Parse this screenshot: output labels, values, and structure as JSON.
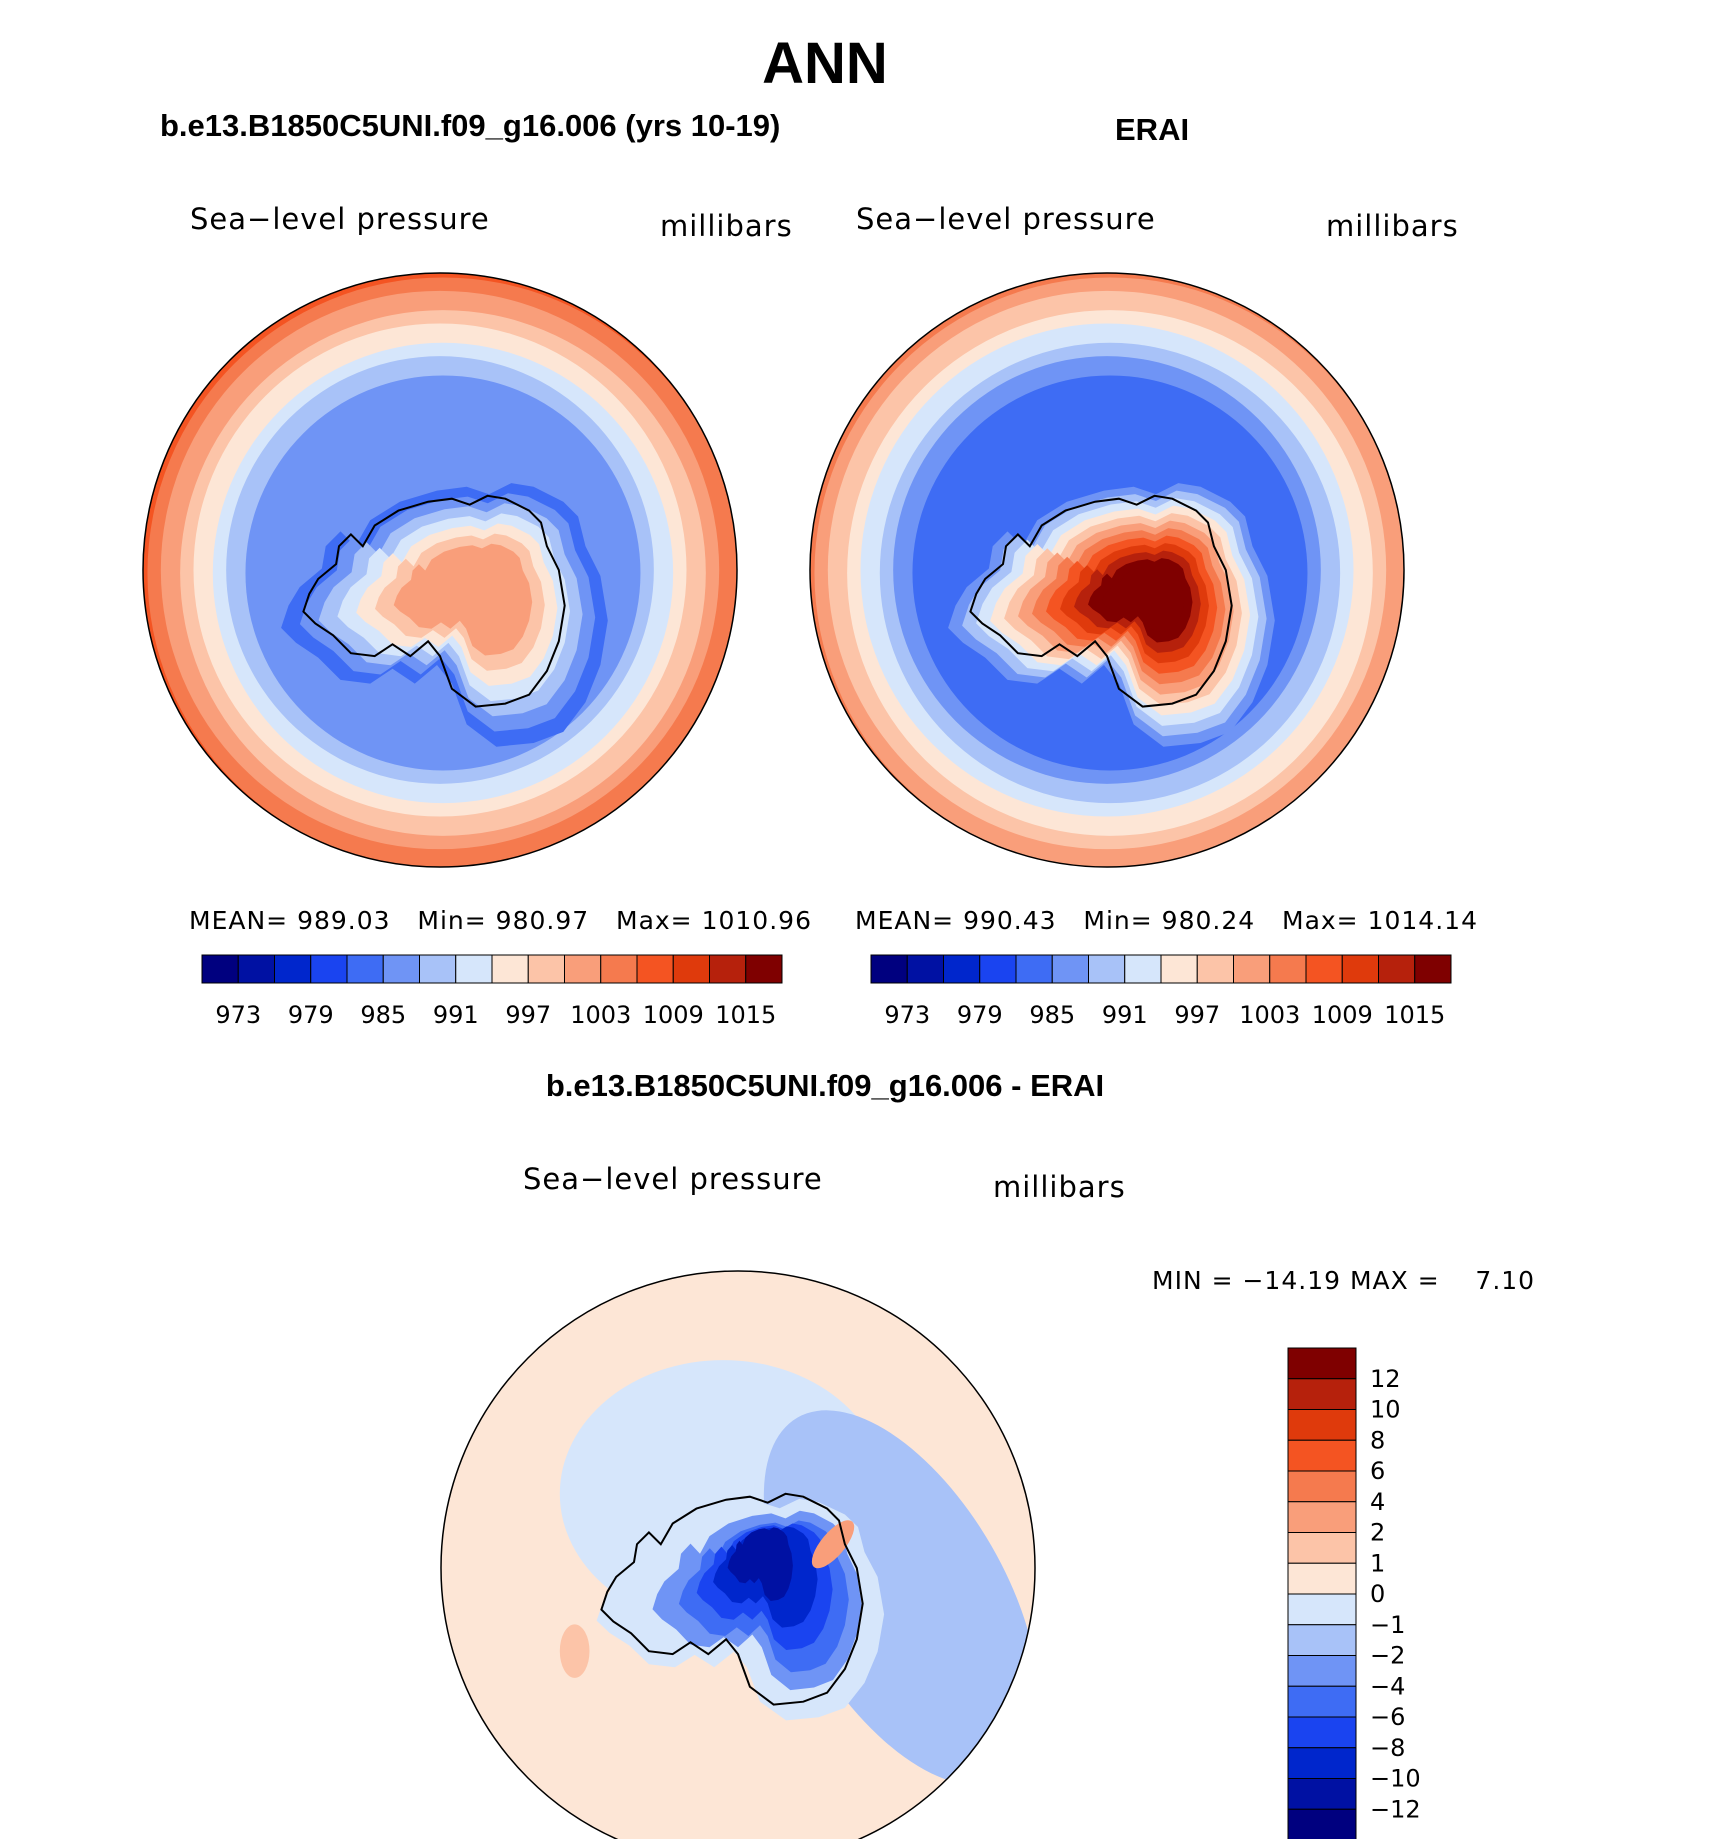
{
  "title": "ANN",
  "panels": [
    {
      "id": "model",
      "title": "b.e13.B1850C5UNI.f09_g16.006 (yrs 10-19)",
      "variable": "Sea−level pressure",
      "units": "millibars",
      "stats": {
        "mean_label": "MEAN=",
        "mean": "989.03",
        "min_label": "Min=",
        "min": "980.97",
        "max_label": "Max=",
        "max": "1010.96"
      }
    },
    {
      "id": "obs",
      "title": "ERAI",
      "variable": "Sea−level pressure",
      "units": "millibars",
      "stats": {
        "mean_label": "MEAN=",
        "mean": "990.43",
        "min_label": "Min=",
        "min": "980.24",
        "max_label": "Max=",
        "max": "1014.14"
      }
    },
    {
      "id": "diff",
      "title": "b.e13.B1850C5UNI.f09_g16.006 - ERAI",
      "variable": "Sea−level pressure",
      "units": "millibars",
      "stats": {
        "minmax": "MIN = −14.19 MAX =    7.10"
      }
    }
  ],
  "chart_data": [
    {
      "type": "heatmap",
      "projection": "south polar stereographic",
      "title": "b.e13.B1850C5UNI.f09_g16.006 (yrs 10-19)",
      "variable": "Sea-level pressure",
      "units": "millibars",
      "mean": 989.03,
      "min": 980.97,
      "max": 1010.96,
      "colorbar_ticks": [
        973,
        979,
        985,
        991,
        997,
        1003,
        1009,
        1015
      ],
      "colorbar_levels": [
        970,
        973,
        976,
        979,
        982,
        985,
        988,
        991,
        994,
        997,
        1000,
        1003,
        1006,
        1009,
        1012,
        1015
      ],
      "field_levels": [
        1003,
        1000,
        997,
        994,
        991,
        988,
        985,
        982,
        981,
        982,
        985,
        988,
        991,
        994,
        997
      ]
    },
    {
      "type": "heatmap",
      "projection": "south polar stereographic",
      "title": "ERAI",
      "variable": "Sea-level pressure",
      "units": "millibars",
      "mean": 990.43,
      "min": 980.24,
      "max": 1014.14,
      "colorbar_ticks": [
        973,
        979,
        985,
        991,
        997,
        1003,
        1009,
        1015
      ],
      "colorbar_levels": [
        970,
        973,
        976,
        979,
        982,
        985,
        988,
        991,
        994,
        997,
        1000,
        1003,
        1006,
        1009,
        1012,
        1015
      ],
      "field_levels": [
        1000,
        997,
        994,
        991,
        988,
        985,
        982,
        981,
        982,
        985,
        988,
        991,
        994,
        997,
        1000,
        1003,
        1006,
        1009,
        1012,
        1014
      ]
    },
    {
      "type": "heatmap",
      "projection": "south polar stereographic",
      "title": "b.e13.B1850C5UNI.f09_g16.006 - ERAI",
      "variable": "Sea-level pressure",
      "units": "millibars",
      "min": -14.19,
      "max": 7.1,
      "colorbar_labels": [
        "12",
        "10",
        "8",
        "6",
        "4",
        "2",
        "1",
        "0",
        "−1",
        "−2",
        "−4",
        "−6",
        "−8",
        "−10",
        "−12"
      ],
      "colorbar_levels": [
        -12,
        -10,
        -8,
        -6,
        -4,
        -2,
        -1,
        0,
        1,
        2,
        4,
        6,
        8,
        10,
        12
      ]
    }
  ],
  "colors": {
    "seq16": [
      "#00007f",
      "#0011a3",
      "#0026cc",
      "#1a44f0",
      "#3e6cf4",
      "#6f94f5",
      "#a8c2f8",
      "#d6e6fb",
      "#fde6d6",
      "#fcc4a8",
      "#f99e7a",
      "#f57a4e",
      "#f45422",
      "#df3a0c",
      "#b6210c",
      "#7f0000"
    ],
    "diff16": [
      "#7f0000",
      "#b6210c",
      "#df3a0c",
      "#f45422",
      "#f57a4e",
      "#f99e7a",
      "#fcc4a8",
      "#fde6d6",
      "#d6e6fb",
      "#a8c2f8",
      "#6f94f5",
      "#3e6cf4",
      "#1a44f0",
      "#0026cc",
      "#0011a3",
      "#00007f"
    ]
  }
}
